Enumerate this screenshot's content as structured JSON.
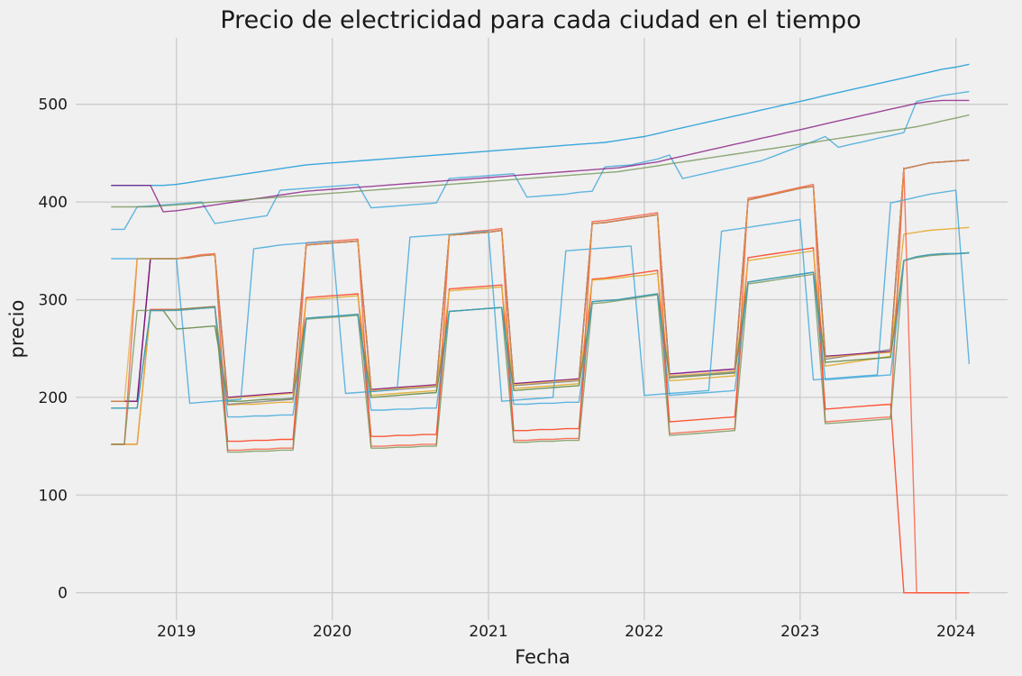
{
  "chart_data": {
    "type": "line",
    "title": "Precio de electricidad para cada ciudad en el tiempo",
    "xlabel": "Fecha",
    "ylabel": "precio",
    "xlim": [
      "2018-05-10",
      "2024-05-01"
    ],
    "ylim": [
      -28,
      568
    ],
    "x_ticks": [
      {
        "date": "2019-01-01",
        "label": "2019"
      },
      {
        "date": "2020-01-01",
        "label": "2020"
      },
      {
        "date": "2021-01-01",
        "label": "2021"
      },
      {
        "date": "2022-01-01",
        "label": "2022"
      },
      {
        "date": "2023-01-01",
        "label": "2023"
      },
      {
        "date": "2024-01-01",
        "label": "2024"
      }
    ],
    "y_ticks": [
      0,
      100,
      200,
      300,
      400,
      500
    ],
    "grid": true,
    "x": [
      "2018-08-01",
      "2018-09-01",
      "2018-10-01",
      "2018-11-01",
      "2018-12-01",
      "2019-01-01",
      "2019-02-01",
      "2019-03-01",
      "2019-04-01",
      "2019-05-01",
      "2019-06-01",
      "2019-07-01",
      "2019-08-01",
      "2019-09-01",
      "2019-10-01",
      "2019-11-01",
      "2019-12-01",
      "2020-01-01",
      "2020-02-01",
      "2020-03-01",
      "2020-04-01",
      "2020-05-01",
      "2020-06-01",
      "2020-07-01",
      "2020-08-01",
      "2020-09-01",
      "2020-10-01",
      "2020-11-01",
      "2020-12-01",
      "2021-01-01",
      "2021-02-01",
      "2021-03-01",
      "2021-04-01",
      "2021-05-01",
      "2021-06-01",
      "2021-07-01",
      "2021-08-01",
      "2021-09-01",
      "2021-10-01",
      "2021-11-01",
      "2021-12-01",
      "2022-01-01",
      "2022-02-01",
      "2022-03-01",
      "2022-04-01",
      "2022-05-01",
      "2022-06-01",
      "2022-07-01",
      "2022-08-01",
      "2022-09-01",
      "2022-10-01",
      "2022-11-01",
      "2022-12-01",
      "2023-01-01",
      "2023-02-01",
      "2023-03-01",
      "2023-04-01",
      "2023-05-01",
      "2023-06-01",
      "2023-07-01",
      "2023-08-01",
      "2023-09-01",
      "2023-10-01",
      "2023-11-01",
      "2023-12-01",
      "2024-01-01",
      "2024-02-01"
    ],
    "series": [
      {
        "color": "#30a2da",
        "values": [
          417,
          417,
          417,
          417,
          417,
          418,
          420,
          422,
          424,
          426,
          428,
          430,
          432,
          434,
          436,
          438,
          439,
          440,
          441,
          442,
          443,
          444,
          445,
          446,
          447,
          448,
          449,
          450,
          451,
          452,
          453,
          454,
          455,
          456,
          457,
          458,
          459,
          460,
          461,
          463,
          465,
          467,
          470,
          473,
          476,
          479,
          482,
          485,
          488,
          491,
          494,
          497,
          500,
          503,
          506,
          509,
          512,
          515,
          518,
          521,
          524,
          527,
          530,
          533,
          536,
          538,
          541
        ]
      },
      {
        "color": "#fc4f30",
        "values": [
          152,
          152,
          152,
          290,
          290,
          290,
          291,
          292,
          293,
          155,
          155,
          156,
          156,
          157,
          157,
          302,
          303,
          304,
          305,
          306,
          160,
          160,
          161,
          161,
          162,
          162,
          311,
          312,
          313,
          314,
          315,
          166,
          166,
          167,
          167,
          168,
          168,
          321,
          322,
          324,
          326,
          328,
          330,
          175,
          176,
          177,
          178,
          179,
          180,
          343,
          345,
          347,
          349,
          351,
          353,
          188,
          189,
          190,
          191,
          192,
          193,
          0,
          0,
          0,
          0,
          0,
          0
        ]
      },
      {
        "color": "#e5ae38",
        "values": [
          152,
          152,
          152,
          289,
          289,
          289,
          290,
          291,
          292,
          192,
          193,
          193,
          194,
          195,
          195,
          300,
          301,
          302,
          303,
          304,
          202,
          203,
          204,
          205,
          206,
          207,
          309,
          310,
          311,
          312,
          313,
          209,
          210,
          211,
          212,
          213,
          214,
          320,
          321,
          322,
          324,
          325,
          327,
          217,
          218,
          219,
          220,
          221,
          222,
          340,
          342,
          344,
          346,
          348,
          350,
          232,
          234,
          236,
          238,
          240,
          242,
          367,
          369,
          371,
          372,
          373,
          374
        ]
      },
      {
        "color": "#6d904f",
        "values": [
          189,
          189,
          189,
          289,
          289,
          270,
          271,
          272,
          273,
          196,
          196,
          197,
          198,
          198,
          199,
          281,
          282,
          283,
          284,
          285,
          200,
          201,
          202,
          203,
          204,
          205,
          288,
          289,
          290,
          291,
          292,
          207,
          208,
          209,
          210,
          211,
          212,
          298,
          299,
          300,
          302,
          304,
          306,
          220,
          221,
          222,
          223,
          224,
          225,
          318,
          320,
          322,
          324,
          326,
          328,
          236,
          237,
          238,
          239,
          240,
          241,
          340,
          344,
          346,
          347,
          347,
          348
        ]
      },
      {
        "color": "#8b8b8b",
        "values": [
          196,
          196,
          196,
          342,
          342,
          342,
          343,
          345,
          346,
          193,
          194,
          195,
          196,
          197,
          198,
          356,
          357,
          358,
          359,
          360,
          206,
          207,
          208,
          209,
          210,
          211,
          366,
          367,
          368,
          369,
          371,
          212,
          213,
          214,
          215,
          216,
          217,
          378,
          379,
          381,
          383,
          385,
          387,
          221,
          222,
          223,
          224,
          225,
          226,
          402,
          405,
          408,
          411,
          414,
          416,
          239,
          241,
          243,
          245,
          247,
          249,
          434,
          437,
          440,
          441,
          442,
          443
        ]
      },
      {
        "color": "#810f7c",
        "values": [
          196,
          196,
          196,
          342,
          342,
          342,
          343,
          345,
          346,
          200,
          201,
          202,
          203,
          204,
          205,
          356,
          357,
          358,
          359,
          360,
          208,
          209,
          210,
          211,
          212,
          213,
          366,
          367,
          368,
          369,
          371,
          214,
          215,
          216,
          217,
          218,
          219,
          378,
          379,
          381,
          383,
          385,
          387,
          224,
          225,
          226,
          227,
          228,
          229,
          402,
          405,
          408,
          411,
          414,
          416,
          242,
          243,
          244,
          245,
          246,
          247,
          434,
          437,
          440,
          441,
          442,
          443
        ]
      },
      {
        "color": "#30a2da",
        "values": [
          372,
          372,
          395,
          396,
          397,
          398,
          399,
          400,
          378,
          380,
          382,
          384,
          386,
          412,
          413,
          414,
          415,
          416,
          417,
          418,
          394,
          395,
          396,
          397,
          398,
          399,
          424,
          425,
          426,
          427,
          428,
          429,
          405,
          406,
          407,
          408,
          410,
          411,
          436,
          437,
          438,
          441,
          444,
          448,
          424,
          427,
          430,
          433,
          436,
          439,
          442,
          447,
          452,
          457,
          462,
          467,
          456,
          459,
          462,
          465,
          468,
          471,
          503,
          506,
          509,
          511,
          513
        ]
      },
      {
        "color": "#810f7c",
        "values": [
          417,
          417,
          417,
          417,
          390,
          391,
          393,
          395,
          397,
          399,
          401,
          403,
          405,
          407,
          409,
          411,
          412,
          413,
          414,
          415,
          416,
          417,
          418,
          419,
          420,
          421,
          422,
          423,
          424,
          425,
          426,
          427,
          428,
          429,
          430,
          431,
          432,
          433,
          434,
          435,
          437,
          439,
          441,
          444,
          447,
          450,
          453,
          456,
          459,
          462,
          465,
          468,
          471,
          474,
          477,
          480,
          483,
          486,
          489,
          492,
          495,
          498,
          501,
          503,
          504,
          504,
          504
        ]
      },
      {
        "color": "#6d904f",
        "values": [
          395,
          395,
          395,
          395,
          396,
          397,
          398,
          399,
          400,
          401,
          402,
          403,
          404,
          405,
          406,
          407,
          408,
          409,
          410,
          411,
          412,
          413,
          414,
          415,
          416,
          417,
          418,
          419,
          420,
          421,
          422,
          423,
          424,
          425,
          426,
          427,
          428,
          429,
          430,
          431,
          433,
          435,
          437,
          439,
          441,
          443,
          445,
          447,
          449,
          451,
          453,
          455,
          457,
          459,
          461,
          463,
          465,
          467,
          469,
          471,
          473,
          475,
          477,
          480,
          483,
          486,
          489
        ]
      },
      {
        "color": "#fc4f30",
        "values": [
          152,
          152,
          342,
          342,
          342,
          342,
          344,
          346,
          347,
          146,
          146,
          147,
          147,
          148,
          148,
          358,
          359,
          360,
          361,
          362,
          150,
          150,
          151,
          151,
          152,
          152,
          366,
          368,
          370,
          371,
          373,
          156,
          156,
          157,
          157,
          158,
          158,
          380,
          381,
          383,
          385,
          387,
          389,
          163,
          164,
          165,
          166,
          167,
          168,
          404,
          406,
          409,
          412,
          415,
          418,
          175,
          176,
          177,
          178,
          179,
          180,
          435,
          0,
          0,
          0,
          0,
          0
        ]
      },
      {
        "color": "#30a2da",
        "values": [
          342,
          342,
          342,
          342,
          342,
          342,
          194,
          195,
          196,
          197,
          198,
          352,
          354,
          356,
          357,
          358,
          359,
          360,
          204,
          205,
          206,
          207,
          208,
          364,
          365,
          366,
          367,
          368,
          369,
          370,
          196,
          197,
          198,
          199,
          200,
          350,
          351,
          352,
          353,
          354,
          355,
          202,
          203,
          204,
          205,
          206,
          207,
          370,
          372,
          374,
          376,
          378,
          380,
          382,
          218,
          219,
          220,
          221,
          222,
          223,
          399,
          402,
          405,
          408,
          410,
          412,
          234
        ]
      },
      {
        "color": "#6d904f",
        "values": [
          152,
          152,
          289,
          289,
          289,
          290,
          291,
          292,
          293,
          144,
          144,
          145,
          145,
          146,
          146,
          280,
          281,
          282,
          283,
          284,
          148,
          148,
          149,
          149,
          150,
          150,
          288,
          289,
          290,
          291,
          292,
          154,
          154,
          155,
          155,
          156,
          156,
          296,
          297,
          299,
          301,
          303,
          305,
          161,
          162,
          163,
          164,
          165,
          166,
          316,
          318,
          320,
          322,
          324,
          326,
          173,
          174,
          175,
          176,
          177,
          178,
          340,
          343,
          345,
          346,
          347,
          348
        ]
      },
      {
        "color": "#30a2da",
        "values": [
          189,
          189,
          189,
          289,
          289,
          289,
          290,
          291,
          292,
          180,
          180,
          181,
          181,
          182,
          182,
          281,
          282,
          283,
          284,
          285,
          187,
          187,
          188,
          188,
          189,
          189,
          288,
          289,
          290,
          291,
          292,
          193,
          193,
          194,
          194,
          195,
          195,
          298,
          299,
          300,
          302,
          304,
          306,
          202,
          203,
          204,
          205,
          206,
          207,
          318,
          320,
          322,
          324,
          326,
          328,
          218,
          219,
          220,
          221,
          222,
          223,
          340,
          344,
          346,
          347,
          347,
          348
        ]
      },
      {
        "color": "#e5ae38",
        "values": [
          196,
          196,
          342,
          342,
          342,
          342,
          343,
          345,
          346,
          199,
          200,
          201,
          202,
          203,
          204,
          356,
          357,
          358,
          359,
          360,
          207,
          208,
          209,
          210,
          211,
          212,
          366,
          367,
          368,
          369,
          371,
          213,
          214,
          215,
          216,
          217,
          218,
          378,
          379,
          381,
          383,
          385,
          387,
          222,
          223,
          224,
          225,
          226,
          227,
          402,
          405,
          408,
          411,
          414,
          416,
          241,
          242,
          243,
          244,
          245,
          246,
          434,
          437,
          440,
          441,
          442,
          443
        ]
      }
    ]
  }
}
